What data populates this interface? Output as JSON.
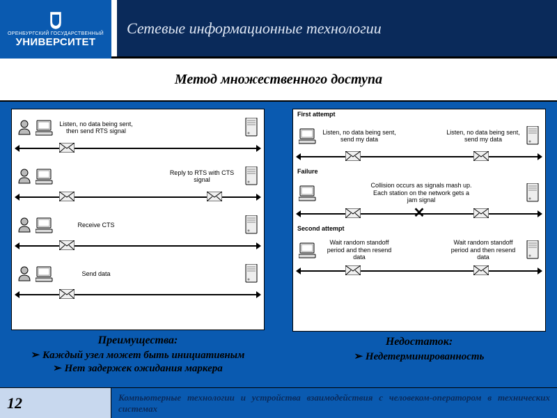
{
  "header": {
    "logo_top": "ОРЕНБУРГСКИЙ ГОСУДАРСТВЕННЫЙ",
    "logo_main": "УНИВЕРСИТЕТ",
    "title": "Сетевые информационные технологии"
  },
  "subtitle": "Метод множественного доступа",
  "left_diagram": {
    "strips": [
      {
        "label": "Listen, no data being sent, then send RTS signal",
        "env_positions": [
          18
        ]
      },
      {
        "label": "Reply to RTS with CTS signal",
        "env_positions": [
          18,
          78
        ]
      },
      {
        "label": "Receive CTS",
        "env_positions": [
          18
        ]
      },
      {
        "label": "Send data",
        "env_positions": [
          18
        ]
      }
    ],
    "caption": "Преимущества:",
    "bullets": [
      "Каждый узел может быть инициативным",
      "Нет задержек ожидания маркера"
    ]
  },
  "right_diagram": {
    "sections": [
      {
        "title": "First attempt",
        "left_label": "Listen, no data being sent, send my data",
        "right_label": "Listen, no data being sent, send my data",
        "env_positions": [
          20,
          72
        ],
        "collision": false
      },
      {
        "title": "Failure",
        "center_label": "Collision occurs as signals mash up. Each station on the network gets a jam signal",
        "env_positions": [
          20,
          72
        ],
        "collision": true
      },
      {
        "title": "Second attempt",
        "left_label": "Wait random standoff period and then resend data",
        "right_label": "Wait random standoff period and then resend data",
        "env_positions": [
          20,
          72
        ],
        "collision": false
      }
    ],
    "caption": "Недостаток:",
    "bullets": [
      "Недетерминированность"
    ]
  },
  "footer": {
    "page": "12",
    "text": "Компьютерные технологии и устройства взаимодействия с человеком-оператором в технических системах"
  },
  "colors": {
    "header_dark": "#0a2a5a",
    "brand_blue": "#0a5ab0",
    "footer_pale": "#c8d8ee",
    "text_white": "#ffffff",
    "text_black": "#000000"
  }
}
